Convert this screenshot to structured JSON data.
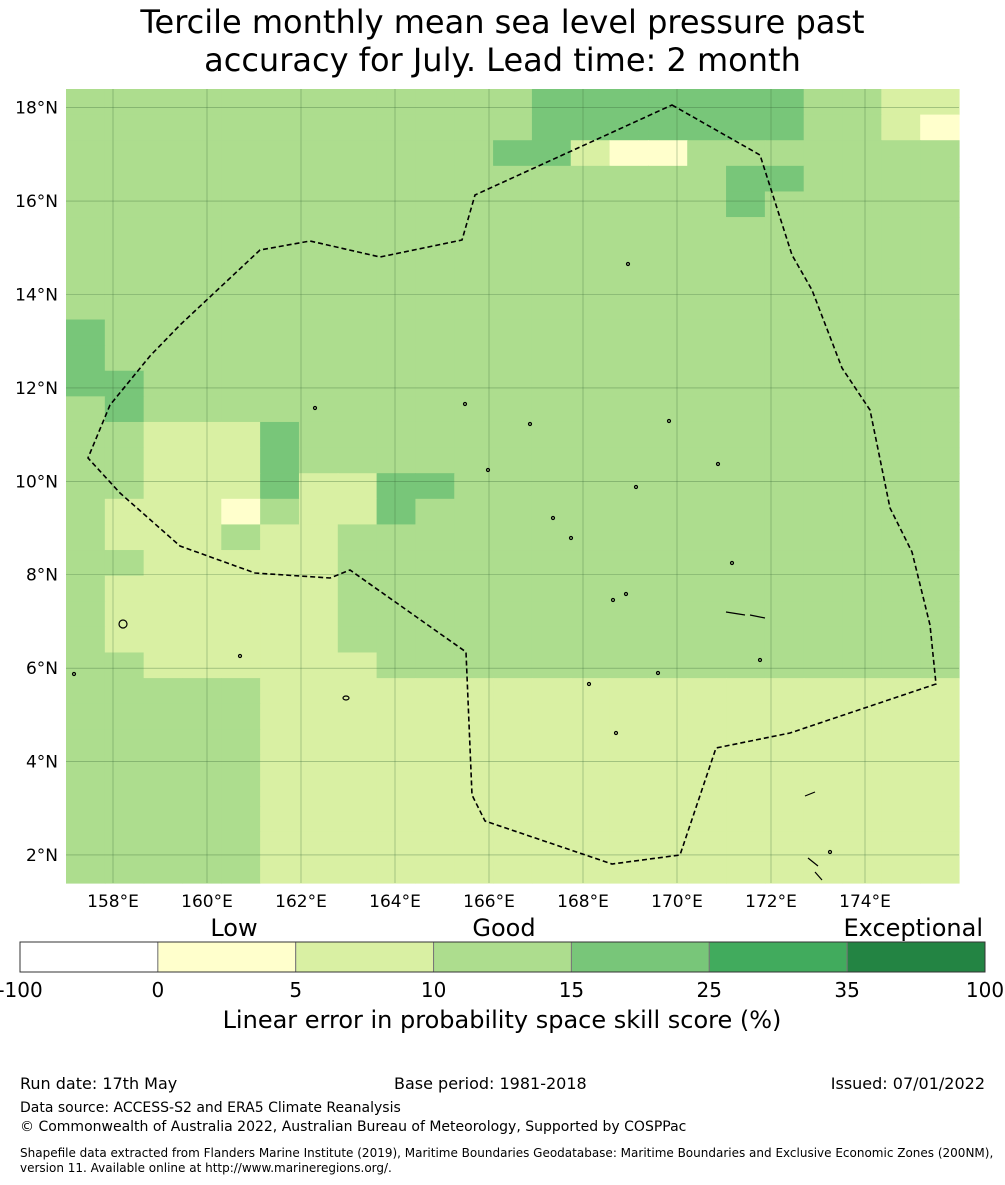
{
  "title": {
    "line1": "Tercile monthly mean sea level pressure past",
    "line2": "accuracy for July. Lead time: 2 month"
  },
  "map": {
    "lon_range": [
      157,
      176
    ],
    "lat_range": [
      1.4,
      18.4
    ],
    "cell_size_deg": 0.833,
    "x_ticks": [
      "158°E",
      "160°E",
      "162°E",
      "164°E",
      "166°E",
      "168°E",
      "170°E",
      "172°E",
      "174°E"
    ],
    "y_ticks": [
      "18°N",
      "16°N",
      "14°N",
      "12°N",
      "10°N",
      "8°N",
      "6°N",
      "4°N",
      "2°N"
    ],
    "gridlines": true,
    "boundary_style": "dashed",
    "grid_rows": [
      "33333333333344444443322",
      "33333333333344444443321",
      "33333333333442113333333",
      "33333333333333333443333",
      "33333333333333333433333",
      "33333333333333333333333",
      "33333333333333333333333",
      "33333333333333333333333",
      "33333333333333333333333",
      "43333333333333333333333",
      "43333333333333333333333",
      "44333333333333333333333",
      "34333333333333333333333",
      "33222433333333333333333",
      "33222433333333333333333",
      "33222422443333333333333",
      "32221322433333333333333",
      "32223223333333333333333",
      "33222223333333333333333",
      "32222223333333333333333",
      "32222223333333333333333",
      "32222223333333333333333",
      "33222222333333333333333",
      "33333222222222222222222",
      "33333222222222222222222",
      "33333222222222222222222",
      "33333222222222222222222",
      "33333222222222222222222",
      "33333222222222222222222",
      "33333222222222222222222",
      "33333222222222222222222"
    ]
  },
  "colorbar": {
    "category_labels": [
      "Low",
      "Good",
      "Exceptional"
    ],
    "boundaries": [
      "-100",
      "0",
      "5",
      "10",
      "15",
      "25",
      "35",
      "100"
    ],
    "colors": [
      "#ffffff",
      "#ffffcc",
      "#d9f0a3",
      "#addd8e",
      "#78c679",
      "#41ab5d",
      "#238443"
    ],
    "label": "Linear error in probability space skill score (%)"
  },
  "footer": {
    "run_date": "Run date: 17th May",
    "base_period": "Base period: 1981-2018",
    "issued": "Issued: 07/01/2022",
    "data_source": "Data source: ACCESS-S2 and ERA5 Climate Reanalysis",
    "copyright": "© Commonwealth of Australia 2022, Australian Bureau of Meteorology, Supported by COSPPac",
    "shapefile": "Shapefile data extracted from Flanders Marine Institute (2019), Maritime Boundaries Geodatabase: Maritime Boundaries and Exclusive Economic Zones (200NM), version 11. Available online at http://www.marineregions.org/."
  }
}
